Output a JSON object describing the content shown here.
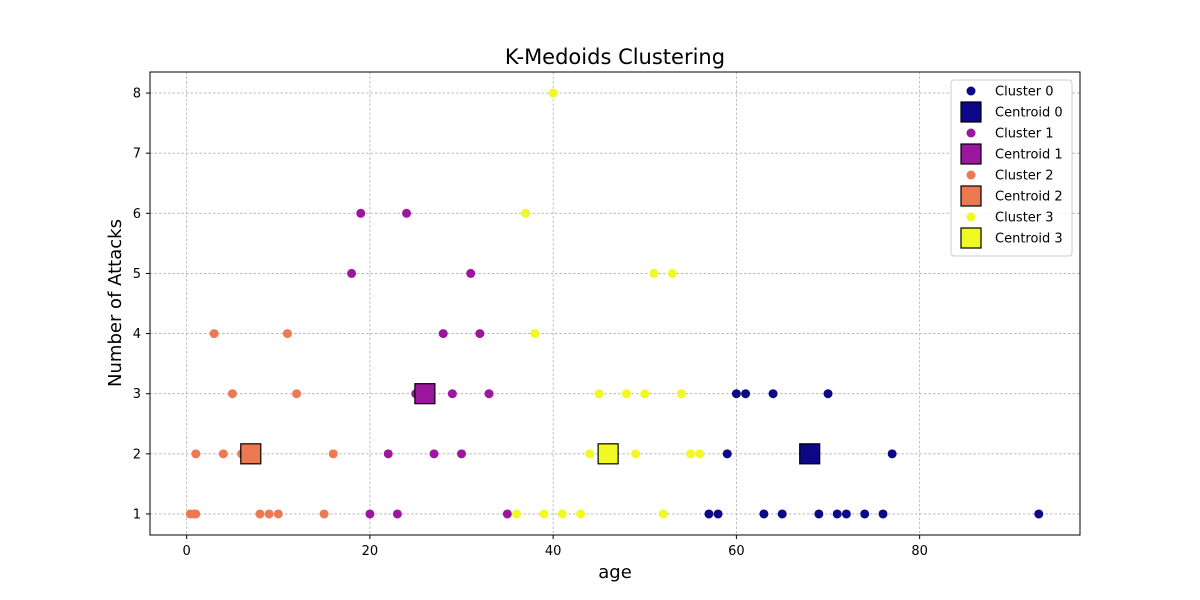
{
  "chart_data": {
    "type": "scatter",
    "title": "K-Medoids Clustering",
    "xlabel": "age",
    "ylabel": "Number of Attacks",
    "xlim": [
      -4,
      97.5
    ],
    "ylim": [
      0.65,
      8.35
    ],
    "xticks": [
      0,
      20,
      40,
      60,
      80
    ],
    "yticks": [
      1,
      2,
      3,
      4,
      5,
      6,
      7,
      8
    ],
    "grid": true,
    "legend_position": "top-right",
    "series": [
      {
        "name": "Cluster 0",
        "role": "points",
        "color": "#0d0887",
        "x": [
          57,
          58,
          63,
          65,
          69,
          71,
          72,
          74,
          76,
          93,
          59,
          77,
          60,
          61,
          64,
          70
        ],
        "y": [
          1,
          1,
          1,
          1,
          1,
          1,
          1,
          1,
          1,
          1,
          2,
          2,
          3,
          3,
          3,
          3
        ]
      },
      {
        "name": "Centroid 0",
        "role": "centroid",
        "color": "#0d0887",
        "x": [
          68
        ],
        "y": [
          2
        ]
      },
      {
        "name": "Cluster 1",
        "role": "points",
        "color": "#9c179e",
        "x": [
          20,
          23,
          35,
          22,
          27,
          30,
          25,
          29,
          33,
          28,
          32,
          18,
          31,
          19,
          24
        ],
        "y": [
          1,
          1,
          1,
          2,
          2,
          2,
          3,
          3,
          3,
          4,
          4,
          5,
          5,
          6,
          6
        ]
      },
      {
        "name": "Centroid 1",
        "role": "centroid",
        "color": "#9c179e",
        "x": [
          26
        ],
        "y": [
          3
        ]
      },
      {
        "name": "Cluster 2",
        "role": "points",
        "color": "#ed7953",
        "x": [
          0.4,
          0.8,
          1,
          8,
          9,
          10,
          15,
          1,
          4,
          6,
          16,
          5,
          12,
          3,
          11
        ],
        "y": [
          1,
          1,
          1,
          1,
          1,
          1,
          1,
          2,
          2,
          2,
          2,
          3,
          3,
          4,
          4
        ]
      },
      {
        "name": "Centroid 2",
        "role": "centroid",
        "color": "#ed7953",
        "x": [
          7
        ],
        "y": [
          2
        ]
      },
      {
        "name": "Cluster 3",
        "role": "points",
        "color": "#f0f921",
        "x": [
          36,
          39,
          41,
          43,
          52,
          44,
          49,
          55,
          56,
          45,
          48,
          50,
          54,
          38,
          51,
          53,
          37,
          40
        ],
        "y": [
          1,
          1,
          1,
          1,
          1,
          2,
          2,
          2,
          2,
          3,
          3,
          3,
          3,
          4,
          5,
          5,
          6,
          8
        ]
      },
      {
        "name": "Centroid 3",
        "role": "centroid",
        "color": "#f0f921",
        "x": [
          46
        ],
        "y": [
          2
        ]
      }
    ]
  }
}
